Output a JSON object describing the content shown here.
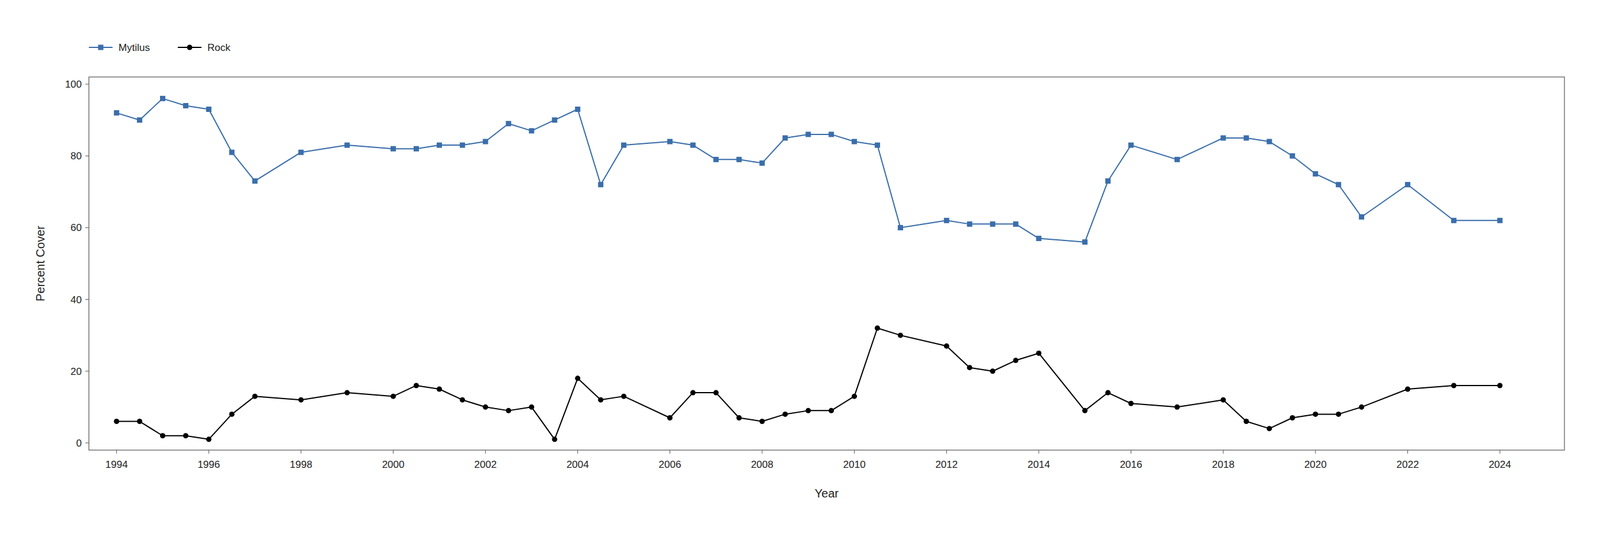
{
  "chart_data": {
    "type": "line",
    "xlabel": "Year",
    "ylabel": "Percent Cover",
    "x": [
      1994,
      1994.5,
      1995,
      1995.5,
      1996,
      1996.5,
      1997,
      1998,
      1999,
      2000,
      2000.5,
      2001,
      2001.5,
      2002,
      2002.5,
      2003,
      2003.5,
      2004,
      2004.5,
      2005,
      2006,
      2006.5,
      2007,
      2007.5,
      2008,
      2008.5,
      2009,
      2009.5,
      2010,
      2010.5,
      2011,
      2012,
      2012.5,
      2013,
      2013.5,
      2014,
      2015,
      2015.5,
      2016,
      2017,
      2018,
      2018.5,
      2019,
      2019.5,
      2020,
      2020.5,
      2021,
      2022,
      2023,
      2024
    ],
    "series": [
      {
        "name": "Mytilus",
        "color": "#3A6EAB",
        "marker": "square",
        "values": [
          92,
          90,
          96,
          94,
          93,
          81,
          73,
          81,
          83,
          82,
          82,
          83,
          83,
          84,
          89,
          87,
          90,
          93,
          72,
          83,
          84,
          83,
          79,
          79,
          78,
          85,
          86,
          86,
          84,
          83,
          60,
          62,
          61,
          61,
          61,
          57,
          56,
          73,
          83,
          79,
          85,
          85,
          84,
          80,
          75,
          72,
          63,
          72,
          62,
          62
        ]
      },
      {
        "name": "Rock",
        "color": "#000000",
        "marker": "circle",
        "values": [
          6,
          6,
          2,
          2,
          1,
          8,
          13,
          12,
          14,
          13,
          16,
          15,
          12,
          10,
          9,
          10,
          1,
          18,
          12,
          13,
          7,
          14,
          14,
          7,
          6,
          8,
          9,
          9,
          13,
          32,
          30,
          27,
          21,
          20,
          23,
          25,
          9,
          14,
          11,
          10,
          12,
          6,
          4,
          7,
          8,
          8,
          10,
          15,
          16,
          16
        ]
      }
    ],
    "xlim": [
      1993.4,
      2025.4
    ],
    "ylim": [
      -2,
      102
    ],
    "xticks": [
      1994,
      1996,
      1998,
      2000,
      2002,
      2004,
      2006,
      2008,
      2010,
      2012,
      2014,
      2016,
      2018,
      2020,
      2022,
      2024
    ],
    "yticks": [
      0,
      20,
      40,
      60,
      80,
      100
    ],
    "grid": false,
    "legend": "upper left"
  }
}
